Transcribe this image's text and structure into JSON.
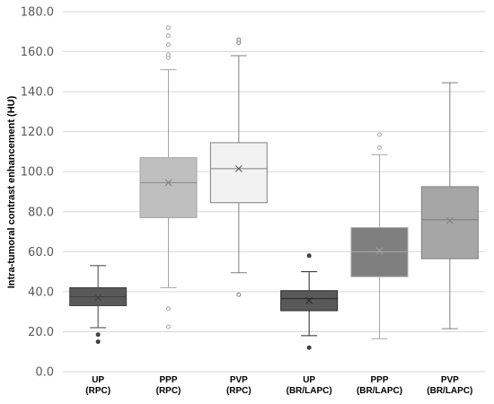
{
  "chart_data": {
    "type": "box",
    "ylabel": "Intra-tumoral contrast enhancement (HU)",
    "ylim": [
      0,
      180
    ],
    "yticks": [
      0,
      20,
      40,
      60,
      80,
      100,
      120,
      140,
      160,
      180
    ],
    "ytick_labels": [
      "0.0",
      "20.0",
      "40.0",
      "60.0",
      "80.0",
      "100.0",
      "120.0",
      "140.0",
      "160.0",
      "180.0"
    ],
    "grid": true,
    "categories": [
      {
        "line1": "UP",
        "line2": "(RPC)"
      },
      {
        "line1": "PPP",
        "line2": "(RPC)"
      },
      {
        "line1": "PVP",
        "line2": "(RPC)"
      },
      {
        "line1": "UP",
        "line2": "(BR/LAPC)"
      },
      {
        "line1": "PPP",
        "line2": "(BR/LAPC)"
      },
      {
        "line1": "PVP",
        "line2": "(BR/LAPC)"
      }
    ],
    "boxes": [
      {
        "whisker_low": 22,
        "q1": 33,
        "median": 37.5,
        "q3": 42,
        "whisker_high": 53,
        "mean": 37,
        "outliers": [
          18.5,
          15
        ],
        "fill": "#595959",
        "stroke": "#404040",
        "median_color": "#404040",
        "mean_color": "#404040",
        "outlier_color": "#404040"
      },
      {
        "whisker_low": 42,
        "q1": 77,
        "median": 94.5,
        "q3": 107,
        "whisker_high": 151,
        "mean": 94.5,
        "outliers": [
          31.5,
          22.5,
          157,
          158.5,
          163.5,
          168,
          172
        ],
        "fill": "#bfbfbf",
        "stroke": "#a6a6a6",
        "median_color": "#8c8c8c",
        "mean_color": "#7f7f7f",
        "outlier_color": "#a6a6a6"
      },
      {
        "whisker_low": 49.5,
        "q1": 84.5,
        "median": 101.5,
        "q3": 114.5,
        "whisker_high": 158,
        "mean": 101.5,
        "outliers": [
          38.5,
          164.5,
          166
        ],
        "fill": "#f2f2f2",
        "stroke": "#7f7f7f",
        "median_color": "#7f7f7f",
        "mean_color": "#595959",
        "outlier_color": "#7f7f7f"
      },
      {
        "whisker_low": 18,
        "q1": 30.5,
        "median": 36.5,
        "q3": 40.5,
        "whisker_high": 50,
        "mean": 35.5,
        "outliers": [
          58,
          12
        ],
        "fill": "#595959",
        "stroke": "#262626",
        "median_color": "#262626",
        "mean_color": "#262626",
        "outlier_color": "#404040"
      },
      {
        "whisker_low": 16.5,
        "q1": 47.5,
        "median": 60,
        "q3": 72,
        "whisker_high": 108.5,
        "mean": 60.5,
        "outliers": [
          112,
          118.5
        ],
        "fill": "#7f7f7f",
        "stroke": "#a6a6a6",
        "median_color": "#a6a6a6",
        "mean_color": "#a6a6a6",
        "outlier_color": "#a6a6a6"
      },
      {
        "whisker_low": 21.5,
        "q1": 56.5,
        "median": 76,
        "q3": 92.5,
        "whisker_high": 144.5,
        "mean": 75.5,
        "outliers": [],
        "fill": "#a6a6a6",
        "stroke": "#7f7f7f",
        "median_color": "#7f7f7f",
        "mean_color": "#7f7f7f",
        "outlier_color": "#7f7f7f"
      }
    ]
  }
}
